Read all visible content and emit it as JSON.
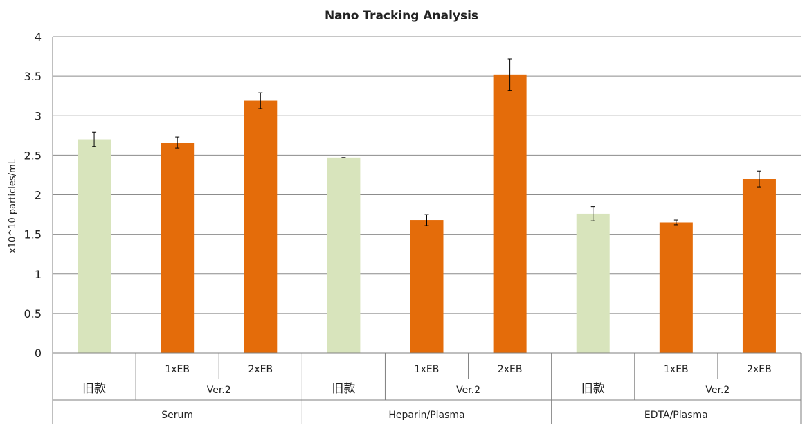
{
  "chart_data": {
    "type": "bar",
    "title": "Nano Tracking Analysis",
    "ylabel": "x10^10 particles/mL",
    "ylim": [
      0,
      4
    ],
    "yticks": [
      0,
      0.5,
      1,
      1.5,
      2,
      2.5,
      3,
      3.5,
      4
    ],
    "ytick_labels": [
      "0",
      "0.5",
      "1",
      "1.5",
      "2",
      "2.5",
      "3",
      "3.5",
      "4"
    ],
    "grid": true,
    "colors": {
      "old": "#d8e4bc",
      "ver2": "#e46c0a",
      "grid": "#8c8c8c",
      "axis": "#7f7f7f"
    },
    "groups": [
      {
        "label": "Serum",
        "bars": [
          {
            "label": "旧款",
            "sublabel": "",
            "value": 2.7,
            "error": 0.09,
            "kind": "old"
          },
          {
            "label": "1xEB",
            "sublabel": "Ver.2",
            "value": 2.66,
            "error": 0.07,
            "kind": "ver2"
          },
          {
            "label": "2xEB",
            "sublabel": "Ver.2",
            "value": 3.19,
            "error": 0.1,
            "kind": "ver2"
          }
        ],
        "ver_label": "Ver.2"
      },
      {
        "label": "Heparin/Plasma",
        "bars": [
          {
            "label": "旧款",
            "sublabel": "",
            "value": 2.47,
            "error": 0.0,
            "kind": "old"
          },
          {
            "label": "1xEB",
            "sublabel": "Ver.2",
            "value": 1.68,
            "error": 0.07,
            "kind": "ver2"
          },
          {
            "label": "2xEB",
            "sublabel": "Ver.2",
            "value": 3.52,
            "error": 0.2,
            "kind": "ver2"
          }
        ],
        "ver_label": "Ver.2"
      },
      {
        "label": "EDTA/Plasma",
        "bars": [
          {
            "label": "旧款",
            "sublabel": "",
            "value": 1.76,
            "error": 0.09,
            "kind": "old"
          },
          {
            "label": "1xEB",
            "sublabel": "Ver.2",
            "value": 1.65,
            "error": 0.03,
            "kind": "ver2"
          },
          {
            "label": "2xEB",
            "sublabel": "Ver.2",
            "value": 2.2,
            "error": 0.1,
            "kind": "ver2"
          }
        ],
        "ver_label": "Ver.2"
      }
    ]
  }
}
